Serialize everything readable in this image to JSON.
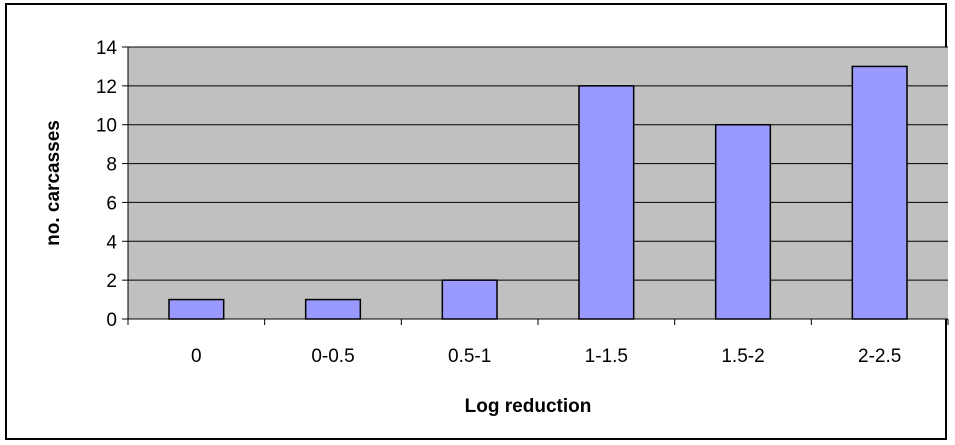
{
  "chart_data": {
    "type": "bar",
    "categories": [
      "0",
      "0-0.5",
      "0.5-1",
      "1-1.5",
      "1.5-2",
      "2-2.5"
    ],
    "values": [
      1,
      1,
      2,
      12,
      10,
      13
    ],
    "title": "",
    "xlabel": "Log reduction",
    "ylabel": "no. carcasses",
    "ylim": [
      0,
      14
    ],
    "yticks": [
      "0",
      "2",
      "4",
      "6",
      "8",
      "10",
      "12",
      "14"
    ],
    "grid": true,
    "legend": "none",
    "colors": {
      "bar_fill": "#9999ff",
      "bar_stroke": "#000000",
      "plot_background": "#c0c0c0",
      "gridline": "#000000"
    }
  }
}
